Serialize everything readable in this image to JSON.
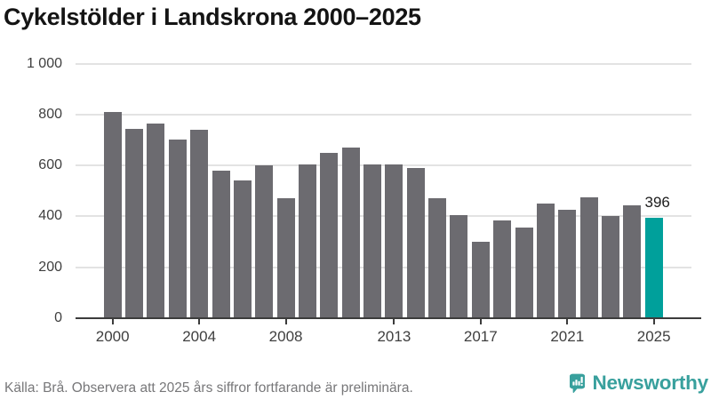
{
  "title": "Cykelstölder i Landskrona 2000–2025",
  "footer": {
    "source": "Källa: Brå. Observera att 2025 års siffror fortfarande är preliminära.",
    "brand": "Newsworthy"
  },
  "colors": {
    "bar": "#6c6b70",
    "highlight": "#00a09b",
    "grid": "#e3e3e3",
    "axis": "#3c3c3c",
    "brand": "#38a09d"
  },
  "chart_data": {
    "type": "bar",
    "title": "Cykelstölder i Landskrona 2000–2025",
    "x": [
      2000,
      2001,
      2002,
      2003,
      2004,
      2005,
      2006,
      2007,
      2008,
      2009,
      2010,
      2011,
      2012,
      2013,
      2014,
      2015,
      2016,
      2017,
      2018,
      2019,
      2020,
      2021,
      2022,
      2023,
      2024,
      2025
    ],
    "values": [
      810,
      745,
      765,
      700,
      740,
      580,
      540,
      600,
      470,
      605,
      650,
      670,
      605,
      605,
      590,
      470,
      405,
      300,
      385,
      355,
      450,
      425,
      475,
      400,
      445,
      396
    ],
    "highlight_year": 2025,
    "annotation": {
      "year": 2025,
      "label": "396"
    },
    "ylim": [
      0,
      1000
    ],
    "yticks": [
      0,
      200,
      400,
      600,
      800,
      1000
    ],
    "ytick_labels": [
      "0",
      "200",
      "400",
      "600",
      "800",
      "1 000"
    ],
    "xtick_years": [
      2000,
      2004,
      2008,
      2013,
      2017,
      2021,
      2025
    ],
    "grid": true,
    "legend": "none"
  }
}
